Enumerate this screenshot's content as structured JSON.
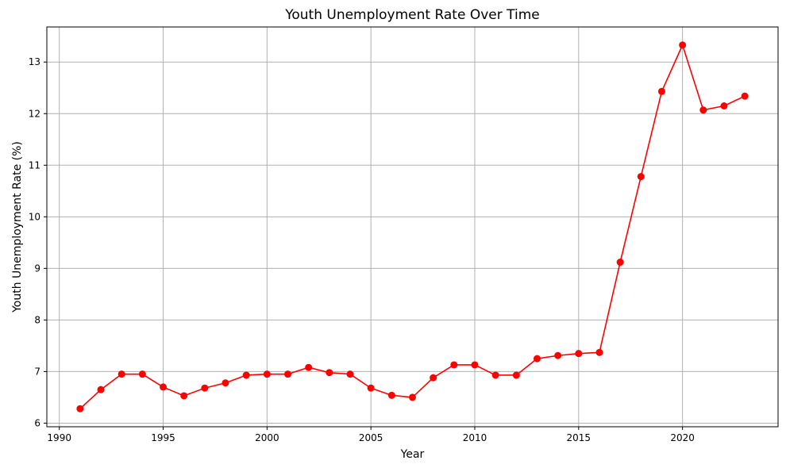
{
  "chart_data": {
    "type": "line",
    "title": "Youth Unemployment Rate Over Time",
    "xlabel": "Year",
    "ylabel": "Youth Unemployment Rate (%)",
    "xlim": [
      1989.4,
      2024.6
    ],
    "ylim": [
      5.93,
      13.68
    ],
    "xticks": [
      1990,
      1995,
      2000,
      2005,
      2010,
      2015,
      2020
    ],
    "yticks": [
      6,
      7,
      8,
      9,
      10,
      11,
      12,
      13
    ],
    "grid": true,
    "line_color": "#ff0000",
    "marker": "circle",
    "series": [
      {
        "x": [
          1991,
          1992,
          1993,
          1994,
          1995,
          1996,
          1997,
          1998,
          1999,
          2000,
          2001,
          2002,
          2003,
          2004,
          2005,
          2006,
          2007,
          2008,
          2009,
          2010,
          2011,
          2012,
          2013,
          2014,
          2015,
          2016,
          2017,
          2018,
          2019,
          2020,
          2021,
          2022,
          2023
        ],
        "values": [
          6.28,
          6.65,
          6.95,
          6.95,
          6.7,
          6.53,
          6.68,
          6.78,
          6.93,
          6.95,
          6.95,
          7.08,
          6.98,
          6.95,
          6.68,
          6.54,
          6.5,
          6.88,
          7.13,
          7.13,
          6.93,
          6.93,
          7.25,
          7.31,
          7.35,
          7.37,
          9.12,
          10.78,
          12.43,
          13.33,
          12.07,
          12.15,
          12.34
        ]
      }
    ]
  }
}
